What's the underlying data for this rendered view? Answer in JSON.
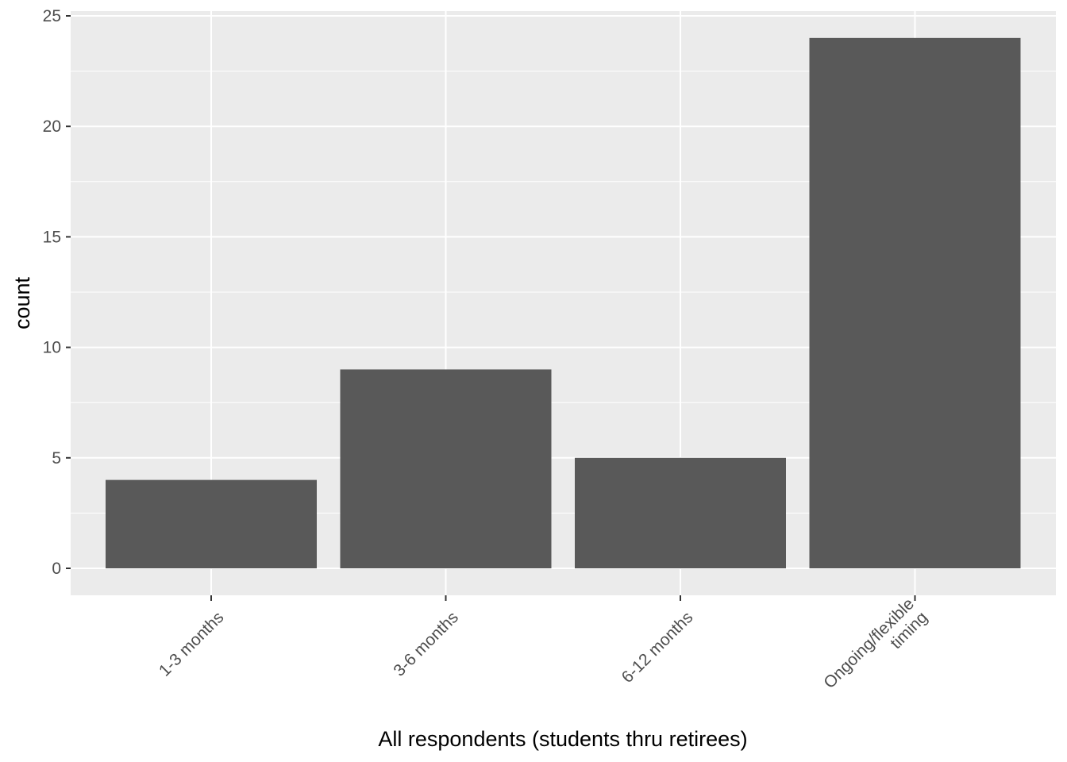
{
  "chart_data": {
    "type": "bar",
    "categories": [
      "1-3 months",
      "3-6 months",
      "6-12 months",
      "Ongoing/flexible\ntiming"
    ],
    "values": [
      4,
      9,
      5,
      24
    ],
    "xlabel": "All respondents (students thru retirees)",
    "ylabel": "count",
    "ylim": [
      0,
      25
    ],
    "yticks": [
      0,
      5,
      10,
      15,
      20,
      25
    ],
    "grid": true,
    "colors": {
      "bar": "#595959",
      "panel": "#ebebeb",
      "grid": "#ffffff",
      "tick_text": "#4d4d4d",
      "tick_mark": "#333333"
    }
  }
}
